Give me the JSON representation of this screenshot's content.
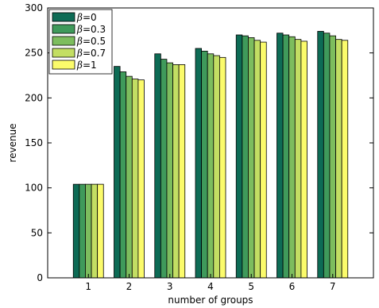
{
  "chart_data": {
    "type": "bar",
    "xlabel": "number of groups",
    "ylabel": "revenue",
    "ylim": [
      0,
      300
    ],
    "yticks": [
      0,
      50,
      100,
      150,
      200,
      250,
      300
    ],
    "categories": [
      "1",
      "2",
      "3",
      "4",
      "5",
      "6",
      "7"
    ],
    "grid": false,
    "legend_position": "top-left",
    "series": [
      {
        "name": "β=0",
        "symbol": "β",
        "value_text": "=0",
        "color": "#0d6b55",
        "values": [
          104,
          235,
          249,
          255,
          270,
          272,
          274
        ]
      },
      {
        "name": "β=0.3",
        "symbol": "β",
        "value_text": "=0.3",
        "color": "#3f9a5b",
        "values": [
          104,
          229,
          243,
          252,
          269,
          270,
          272
        ]
      },
      {
        "name": "β=0.5",
        "symbol": "β",
        "value_text": "=0.5",
        "color": "#7dbd5e",
        "values": [
          104,
          224,
          239,
          249,
          267,
          268,
          269
        ]
      },
      {
        "name": "β=0.7",
        "symbol": "β",
        "value_text": "=0.7",
        "color": "#c3de63",
        "values": [
          104,
          221,
          237,
          247,
          264,
          265,
          265
        ]
      },
      {
        "name": "β=1",
        "symbol": "β",
        "value_text": "=1",
        "color": "#fbfb6b",
        "values": [
          104,
          220,
          237,
          245,
          262,
          263,
          264
        ]
      }
    ]
  }
}
